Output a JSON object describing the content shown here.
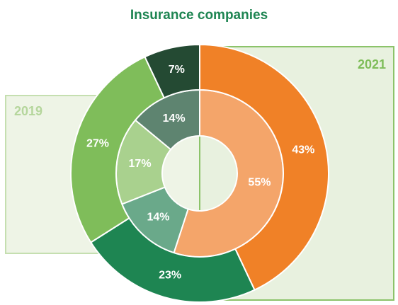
{
  "chart_data": {
    "type": "donut",
    "title": "Insurance companies",
    "series": [
      {
        "name": "2019",
        "values": [
          55,
          14,
          17,
          14
        ],
        "value_labels": [
          "55%",
          "14%",
          "17%",
          "14%"
        ],
        "colors": [
          "#f4a56a",
          "#6aa98a",
          "#a9d18e",
          "#5e8470"
        ]
      },
      {
        "name": "2021",
        "values": [
          43,
          23,
          27,
          7
        ],
        "value_labels": [
          "43%",
          "23%",
          "27%",
          "7%"
        ],
        "colors": [
          "#f08127",
          "#1e8552",
          "#7fbd5a",
          "#244a33"
        ]
      }
    ]
  }
}
